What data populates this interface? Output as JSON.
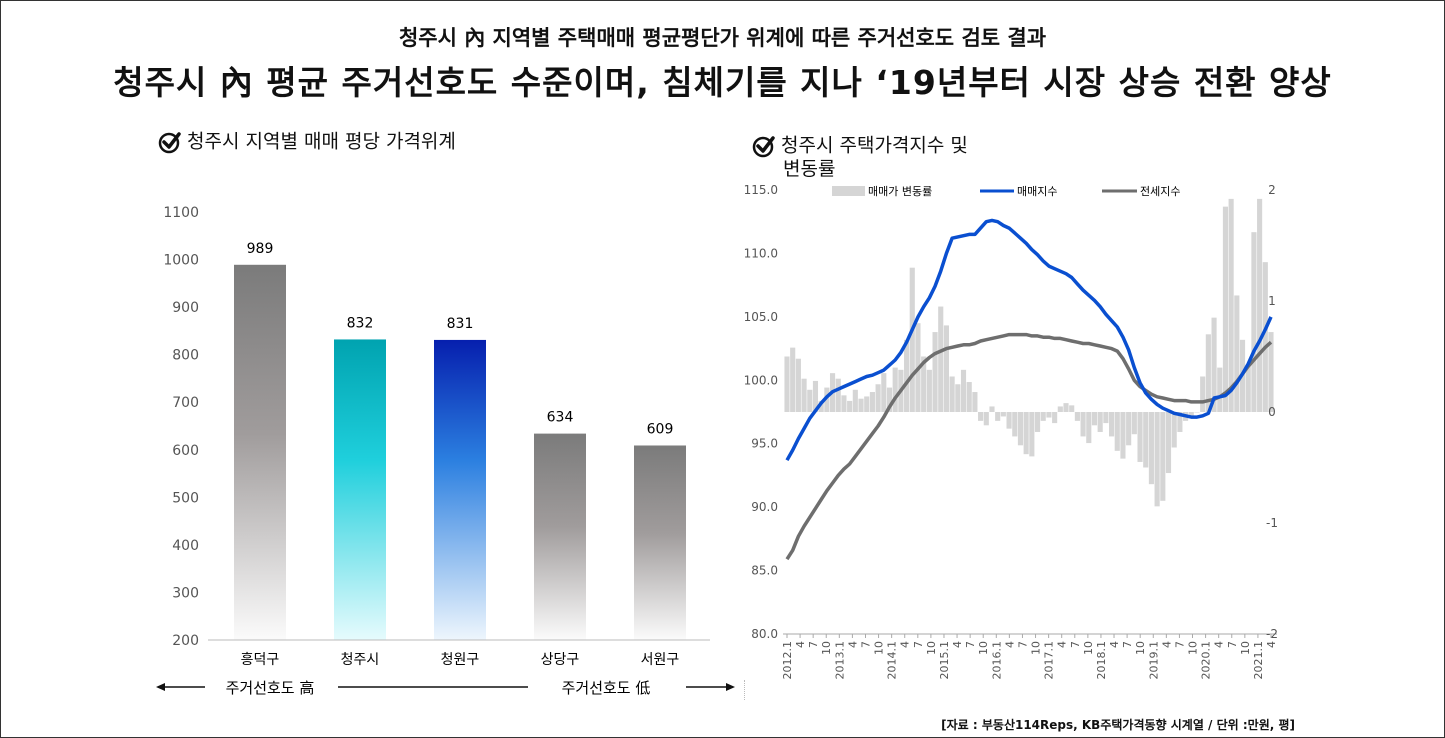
{
  "header": {
    "subtitle": "청주시 內 지역별 주택매매 평균평단가 위계에 따른 주거선호도 검토 결과",
    "title": "청주시 內 평균 주거선호도 수준이며, 침체기를 지나 ‘19년부터 시장 상승 전환 양상"
  },
  "left": {
    "section_title": "청주시 지역별 매매 평당 가격위계",
    "pref_high": "주거선호도 高",
    "pref_low": "주거선호도 低"
  },
  "right": {
    "section_title_line1": "청주시 주택가격지수 및",
    "section_title_line2": "변동률"
  },
  "source": "[자료 : 부동산114Reps, KB주택가격동향 시계열 / 단위 :만원, 평]",
  "colors": {
    "gray_bar": "#8a8a8a",
    "teal": "#00a8b4",
    "blue": "#0a2cb8",
    "index_line": "#0a4fd0",
    "jeonse_line": "#6e6e6e",
    "change_bar": "#d5d5d5"
  },
  "chart_data": [
    {
      "type": "bar",
      "categories": [
        "흥덕구",
        "청주시",
        "청원구",
        "상당구",
        "서원구"
      ],
      "values": [
        989,
        832,
        831,
        634,
        609
      ],
      "data_labels": [
        "989",
        "832",
        "831",
        "634",
        "609"
      ],
      "ylim": [
        200,
        1100
      ],
      "yticks": [
        "1100",
        "1000",
        "900",
        "800",
        "700",
        "600",
        "500",
        "400",
        "300",
        "200"
      ],
      "grid": false
    },
    {
      "type": "line",
      "legend": [
        "매매가 변동률",
        "매매지수",
        "전세지수"
      ],
      "legend_position": "top",
      "x_labels": [
        "2012.1",
        "4",
        "7",
        "10",
        "2013.1",
        "4",
        "7",
        "10",
        "2014.1",
        "4",
        "7",
        "10",
        "2015.1",
        "4",
        "7",
        "10",
        "2016.1",
        "4",
        "7",
        "10",
        "2017.1",
        "4",
        "7",
        "10",
        "2018.1",
        "4",
        "7",
        "10",
        "2019.1",
        "4",
        "7",
        "10",
        "2020.1",
        "4",
        "7",
        "10",
        "2021.1",
        "4"
      ],
      "y_left_ticks": [
        "115.0",
        "110.0",
        "105.0",
        "100.0",
        "95.0",
        "90.0",
        "85.0",
        "80.0"
      ],
      "y_left_lim": [
        80,
        115
      ],
      "y_right_ticks": [
        "2",
        "1",
        "0",
        "-1",
        "-2"
      ],
      "y_right_lim": [
        -2,
        2
      ],
      "grid": false,
      "series": [
        {
          "name": "매매지수",
          "axis": "left",
          "values": [
            93.7,
            94.5,
            95.4,
            96.2,
            97.0,
            97.6,
            98.2,
            98.7,
            99.1,
            99.3,
            99.5,
            99.7,
            99.9,
            100.1,
            100.3,
            100.4,
            100.6,
            100.8,
            101.2,
            101.6,
            102.2,
            103.0,
            104.0,
            105.0,
            105.8,
            106.5,
            107.4,
            108.6,
            110.0,
            111.2,
            111.3,
            111.4,
            111.5,
            111.5,
            112.0,
            112.5,
            112.6,
            112.5,
            112.2,
            112.0,
            111.6,
            111.2,
            110.8,
            110.3,
            109.9,
            109.4,
            109.0,
            108.8,
            108.6,
            108.4,
            108.1,
            107.6,
            107.1,
            106.7,
            106.3,
            105.8,
            105.2,
            104.7,
            104.2,
            103.4,
            102.4,
            101.0,
            99.8,
            99.0,
            98.5,
            98.1,
            97.8,
            97.6,
            97.4,
            97.3,
            97.2,
            97.1,
            97.1,
            97.2,
            97.4,
            98.6,
            98.7,
            98.8,
            99.2,
            99.8,
            100.5,
            101.3,
            102.3,
            103.1,
            104.0,
            105.0
          ]
        },
        {
          "name": "전세지수",
          "axis": "left",
          "values": [
            85.9,
            86.6,
            87.7,
            88.5,
            89.2,
            89.9,
            90.6,
            91.3,
            91.9,
            92.5,
            93.0,
            93.4,
            94.0,
            94.6,
            95.2,
            95.8,
            96.4,
            97.1,
            97.9,
            98.6,
            99.2,
            99.8,
            100.4,
            100.9,
            101.4,
            101.8,
            102.1,
            102.3,
            102.5,
            102.6,
            102.7,
            102.8,
            102.8,
            102.9,
            103.1,
            103.2,
            103.3,
            103.4,
            103.5,
            103.6,
            103.6,
            103.6,
            103.6,
            103.5,
            103.5,
            103.4,
            103.4,
            103.3,
            103.3,
            103.2,
            103.1,
            103.0,
            102.9,
            102.9,
            102.8,
            102.7,
            102.6,
            102.5,
            102.3,
            101.7,
            100.9,
            100.0,
            99.5,
            99.2,
            98.9,
            98.7,
            98.6,
            98.5,
            98.4,
            98.4,
            98.4,
            98.3,
            98.3,
            98.3,
            98.4,
            98.5,
            98.7,
            99.0,
            99.4,
            99.9,
            100.5,
            101.1,
            101.6,
            102.1,
            102.6,
            103.0
          ]
        },
        {
          "name": "매매가 변동률",
          "axis": "right",
          "values": [
            0.5,
            0.58,
            0.48,
            0.3,
            0.2,
            0.28,
            0.1,
            0.22,
            0.35,
            0.3,
            0.15,
            0.1,
            0.2,
            0.12,
            0.14,
            0.18,
            0.25,
            0.35,
            0.22,
            0.4,
            0.38,
            0.65,
            1.3,
            0.8,
            0.5,
            0.38,
            0.72,
            0.95,
            0.78,
            0.32,
            0.25,
            0.38,
            0.27,
            0.18,
            -0.08,
            -0.12,
            0.05,
            -0.08,
            -0.04,
            -0.15,
            -0.22,
            -0.3,
            -0.38,
            -0.4,
            -0.18,
            -0.08,
            -0.05,
            -0.1,
            0.05,
            0.08,
            0.06,
            -0.08,
            -0.22,
            -0.28,
            -0.12,
            -0.18,
            -0.1,
            -0.22,
            -0.35,
            -0.42,
            -0.3,
            -0.2,
            -0.45,
            -0.5,
            -0.65,
            -0.85,
            -0.8,
            -0.55,
            -0.32,
            -0.18,
            -0.08,
            -0.05,
            0.0,
            0.32,
            0.7,
            0.85,
            0.4,
            1.85,
            1.92,
            1.05,
            0.65,
            0.42,
            1.62,
            1.92,
            1.35,
            0.72
          ]
        }
      ]
    }
  ]
}
